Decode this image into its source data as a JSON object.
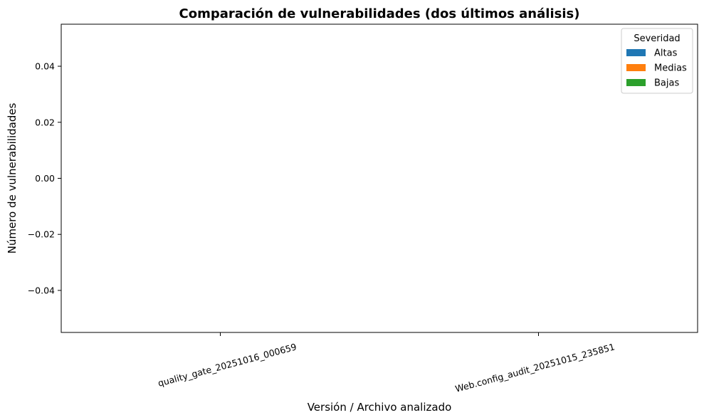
{
  "chart_data": {
    "type": "bar",
    "title": "Comparación de vulnerabilidades (dos últimos análisis)",
    "xlabel": "Versión / Archivo analizado",
    "ylabel": "Número de vulnerabilidades",
    "categories": [
      "quality_gate_20251016_000659",
      "Web.config_audit_20251015_235851"
    ],
    "series": [
      {
        "name": "Altas",
        "color": "#1f77b4",
        "values": [
          0,
          0
        ]
      },
      {
        "name": "Medias",
        "color": "#ff7f0e",
        "values": [
          0,
          0
        ]
      },
      {
        "name": "Bajas",
        "color": "#2ca02c",
        "values": [
          0,
          0
        ]
      }
    ],
    "ylim": [
      -0.055,
      0.055
    ],
    "yticks": [
      -0.04,
      -0.02,
      0.0,
      0.02,
      0.04
    ],
    "ytick_labels": [
      "−0.04",
      "−0.02",
      "0.00",
      "0.02",
      "0.04"
    ],
    "grid": false,
    "legend": {
      "title": "Severidad",
      "placement": "top-right"
    }
  }
}
